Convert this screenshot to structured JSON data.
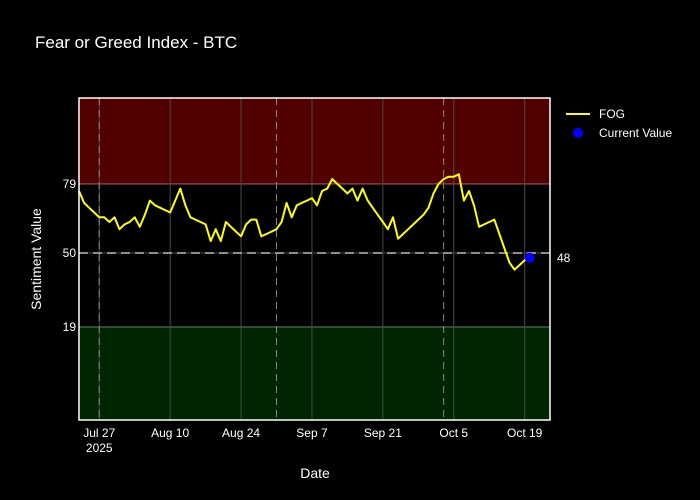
{
  "chart_data": {
    "type": "line",
    "title": "Fear or Greed Index - BTC",
    "xlabel": "Date",
    "ylabel": "Sentiment Value",
    "x_start": "2025-07-23",
    "x_end": "2025-10-24",
    "ylim": [
      -20,
      115
    ],
    "x_ticks": [
      {
        "date": "2025-07-27",
        "label": "Jul 27",
        "sublabel": "2025"
      },
      {
        "date": "2025-08-10",
        "label": "Aug 10"
      },
      {
        "date": "2025-08-24",
        "label": "Aug 24"
      },
      {
        "date": "2025-09-07",
        "label": "Sep 7"
      },
      {
        "date": "2025-09-21",
        "label": "Sep 21"
      },
      {
        "date": "2025-10-05",
        "label": "Oct 5"
      },
      {
        "date": "2025-10-19",
        "label": "Oct 19"
      }
    ],
    "y_ticks": [
      19,
      50,
      79
    ],
    "vlines": [
      "2025-07-27",
      "2025-08-31",
      "2025-10-03"
    ],
    "bands": [
      {
        "from": 79,
        "to": 115,
        "fill": "#520000",
        "edge": "#e03030"
      },
      {
        "from": -20,
        "to": 19,
        "fill": "#002500",
        "edge": "#2f8a2f"
      }
    ],
    "hline": {
      "value": 50,
      "color": "#bbbbbb"
    },
    "current": {
      "date": "2025-10-20",
      "value": 48,
      "label": "48",
      "color": "#0000ff"
    },
    "series": [
      {
        "name": "FOG",
        "color": "#ffff00",
        "points": [
          [
            "2025-07-23",
            76
          ],
          [
            "2025-07-24",
            71
          ],
          [
            "2025-07-25",
            69
          ],
          [
            "2025-07-26",
            67
          ],
          [
            "2025-07-27",
            65
          ],
          [
            "2025-07-28",
            65
          ],
          [
            "2025-07-29",
            63
          ],
          [
            "2025-07-30",
            65
          ],
          [
            "2025-07-31",
            60
          ],
          [
            "2025-08-01",
            62
          ],
          [
            "2025-08-02",
            63
          ],
          [
            "2025-08-03",
            65
          ],
          [
            "2025-08-04",
            61
          ],
          [
            "2025-08-05",
            66
          ],
          [
            "2025-08-06",
            72
          ],
          [
            "2025-08-07",
            70
          ],
          [
            "2025-08-08",
            69
          ],
          [
            "2025-08-09",
            68
          ],
          [
            "2025-08-10",
            67
          ],
          [
            "2025-08-11",
            72
          ],
          [
            "2025-08-12",
            77
          ],
          [
            "2025-08-13",
            70
          ],
          [
            "2025-08-14",
            65
          ],
          [
            "2025-08-15",
            64
          ],
          [
            "2025-08-16",
            63
          ],
          [
            "2025-08-17",
            62
          ],
          [
            "2025-08-18",
            55
          ],
          [
            "2025-08-19",
            60
          ],
          [
            "2025-08-20",
            55
          ],
          [
            "2025-08-21",
            63
          ],
          [
            "2025-08-22",
            61
          ],
          [
            "2025-08-23",
            59
          ],
          [
            "2025-08-24",
            57
          ],
          [
            "2025-08-25",
            62
          ],
          [
            "2025-08-26",
            64
          ],
          [
            "2025-08-27",
            64
          ],
          [
            "2025-08-28",
            57
          ],
          [
            "2025-08-29",
            58
          ],
          [
            "2025-08-30",
            59
          ],
          [
            "2025-08-31",
            60
          ],
          [
            "2025-09-01",
            63
          ],
          [
            "2025-09-02",
            71
          ],
          [
            "2025-09-03",
            65
          ],
          [
            "2025-09-04",
            70
          ],
          [
            "2025-09-05",
            71
          ],
          [
            "2025-09-06",
            72
          ],
          [
            "2025-09-07",
            73
          ],
          [
            "2025-09-08",
            70
          ],
          [
            "2025-09-09",
            76
          ],
          [
            "2025-09-10",
            77
          ],
          [
            "2025-09-11",
            81
          ],
          [
            "2025-09-12",
            79
          ],
          [
            "2025-09-13",
            77
          ],
          [
            "2025-09-14",
            75
          ],
          [
            "2025-09-15",
            77
          ],
          [
            "2025-09-16",
            72
          ],
          [
            "2025-09-17",
            77
          ],
          [
            "2025-09-18",
            72
          ],
          [
            "2025-09-19",
            69
          ],
          [
            "2025-09-20",
            66
          ],
          [
            "2025-09-21",
            63
          ],
          [
            "2025-09-22",
            60
          ],
          [
            "2025-09-23",
            65
          ],
          [
            "2025-09-24",
            56
          ],
          [
            "2025-09-25",
            58
          ],
          [
            "2025-09-26",
            60
          ],
          [
            "2025-09-27",
            62
          ],
          [
            "2025-09-28",
            64
          ],
          [
            "2025-09-29",
            66
          ],
          [
            "2025-09-30",
            69
          ],
          [
            "2025-10-01",
            75
          ],
          [
            "2025-10-02",
            79
          ],
          [
            "2025-10-03",
            81
          ],
          [
            "2025-10-04",
            82
          ],
          [
            "2025-10-05",
            82
          ],
          [
            "2025-10-06",
            83
          ],
          [
            "2025-10-07",
            72
          ],
          [
            "2025-10-08",
            76
          ],
          [
            "2025-10-09",
            70
          ],
          [
            "2025-10-10",
            61
          ],
          [
            "2025-10-11",
            62
          ],
          [
            "2025-10-12",
            63
          ],
          [
            "2025-10-13",
            64
          ],
          [
            "2025-10-14",
            58
          ],
          [
            "2025-10-15",
            52
          ],
          [
            "2025-10-16",
            46
          ],
          [
            "2025-10-17",
            43
          ],
          [
            "2025-10-18",
            45
          ],
          [
            "2025-10-19",
            47
          ],
          [
            "2025-10-20",
            48
          ]
        ]
      }
    ],
    "legend": {
      "placement": "top-right",
      "entries": [
        {
          "label": "FOG",
          "type": "line",
          "color": "#ffff00"
        },
        {
          "label": "Current Value",
          "type": "marker",
          "color": "#0000ff"
        }
      ]
    },
    "grid": true
  }
}
